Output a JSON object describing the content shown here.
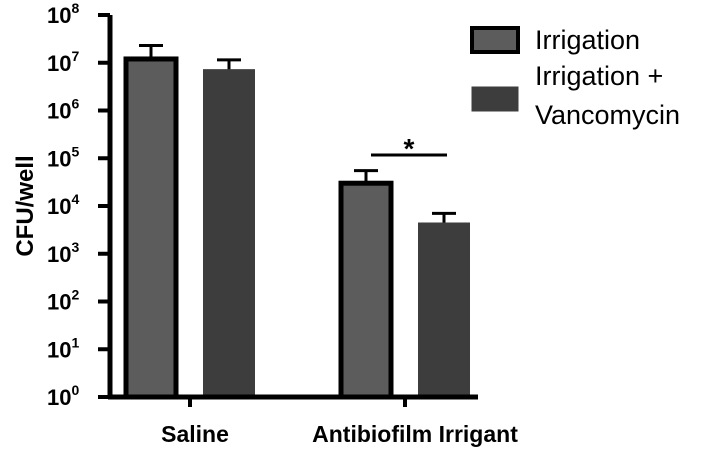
{
  "chart_data": {
    "type": "bar",
    "ylabel": "CFU/well",
    "y_scale": "log",
    "ylim": [
      1,
      100000000
    ],
    "y_ticks": [
      {
        "value": 1,
        "base": "10",
        "exp": "0"
      },
      {
        "value": 10,
        "base": "10",
        "exp": "1"
      },
      {
        "value": 100,
        "base": "10",
        "exp": "2"
      },
      {
        "value": 1000,
        "base": "10",
        "exp": "3"
      },
      {
        "value": 10000,
        "base": "10",
        "exp": "4"
      },
      {
        "value": 100000,
        "base": "10",
        "exp": "5"
      },
      {
        "value": 1000000,
        "base": "10",
        "exp": "6"
      },
      {
        "value": 10000000,
        "base": "10",
        "exp": "7"
      },
      {
        "value": 100000000,
        "base": "10",
        "exp": "8"
      }
    ],
    "categories": [
      "Saline",
      "Antibiofilm Irrigant"
    ],
    "series": [
      {
        "name": "Irrigation",
        "values": [
          12000000,
          30000
        ],
        "error_upper": [
          23000000,
          55000
        ],
        "color": "#5c5c5c",
        "outline": "#000000"
      },
      {
        "name": "Irrigation + Vancomycin",
        "values": [
          7000000,
          4300
        ],
        "error_upper": [
          11500000,
          7000
        ],
        "color": "#3d3d3d",
        "outline": "#3d3d3d"
      }
    ],
    "legend": {
      "position": "top-right",
      "entries": [
        {
          "lines": [
            "Irrigation"
          ],
          "color": "#5c5c5c",
          "outline": "#000000"
        },
        {
          "lines": [
            "Irrigation +",
            "Vancomycin"
          ],
          "color": "#3d3d3d",
          "outline": "#3d3d3d"
        }
      ]
    },
    "annotations": [
      {
        "text": "*",
        "category": "Antibiofilm Irrigant"
      }
    ],
    "grid": false
  }
}
